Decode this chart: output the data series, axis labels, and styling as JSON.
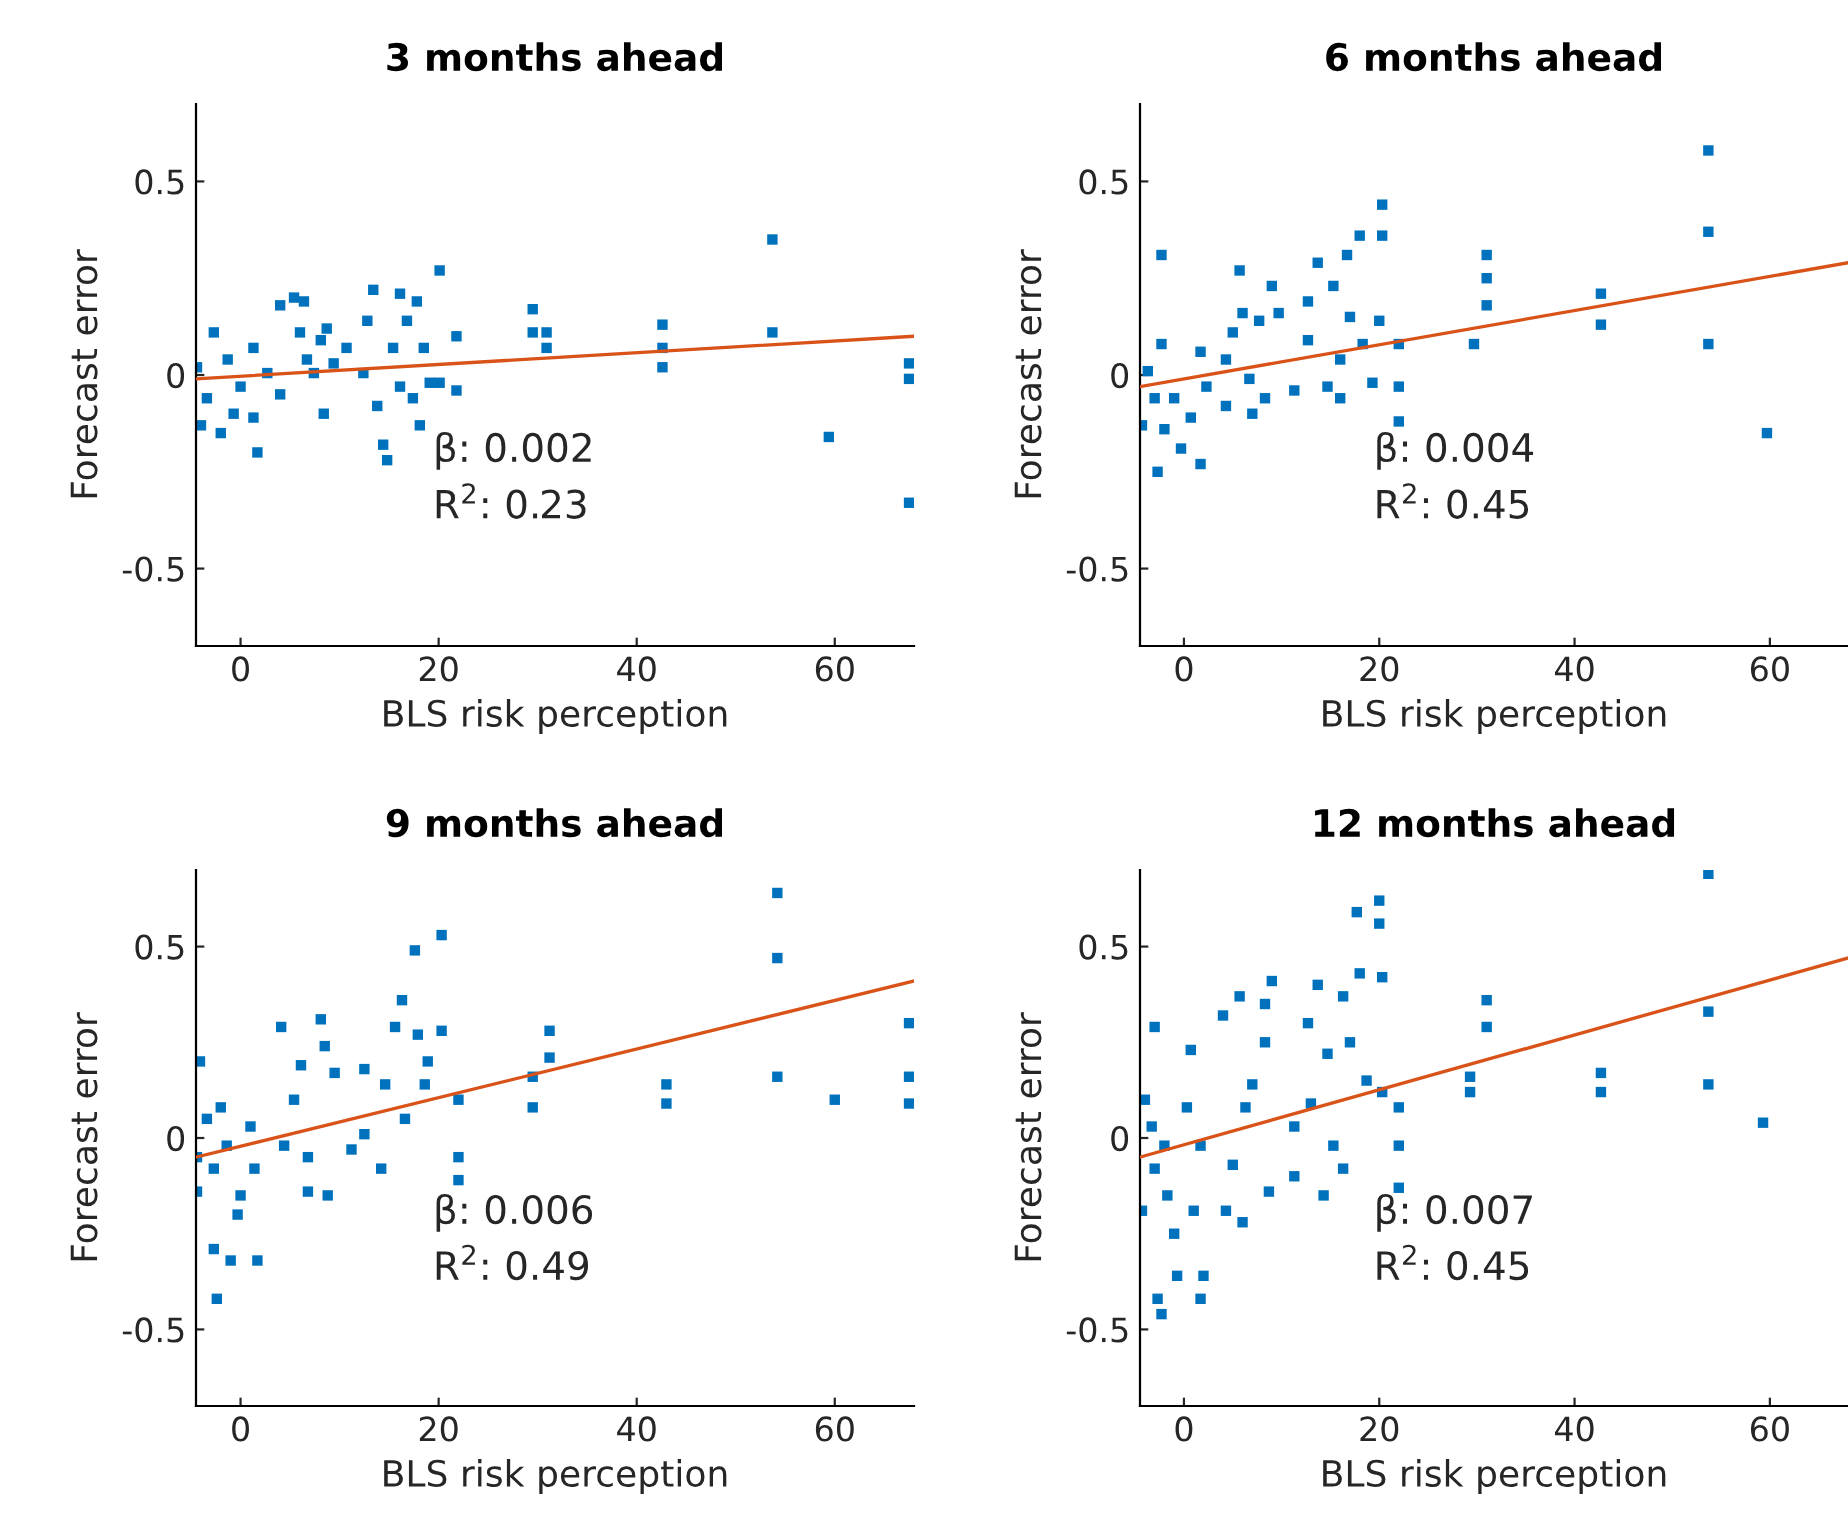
{
  "chart_data": [
    {
      "type": "scatter",
      "title": "3 months ahead",
      "xlabel": "BLS risk perception",
      "ylabel": "Forecast error",
      "xlim": [
        -4.5,
        68
      ],
      "ylim": [
        -0.7,
        0.7
      ],
      "xticks": [
        0,
        20,
        40,
        60
      ],
      "yticks": [
        -0.5,
        0,
        0.5
      ],
      "grid": false,
      "legend": false,
      "annotations": [
        "β: 0.002",
        "R$^{2}$: 0.23"
      ],
      "series": [
        {
          "marker": "square",
          "color": "#0072bd",
          "x": [
            -4.4,
            -4.0,
            -2.7,
            -3.4,
            -1.3,
            -0.7,
            -2.0,
            0,
            1.3,
            1.3,
            1.7,
            2.7,
            4,
            4,
            5.4,
            6.4,
            6,
            6.7,
            7.4,
            8.1,
            8.4,
            8.7,
            9.4,
            10.7,
            12.8,
            13.4,
            12.4,
            13.8,
            14.4,
            14.8,
            15.4,
            16.1,
            16.1,
            16.8,
            17.4,
            18.1,
            17.8,
            18.5,
            19.1,
            20.1,
            20.1,
            21.8,
            21.8,
            29.5,
            29.5,
            30.9,
            30.9,
            42.6,
            42.6,
            42.6,
            53.7,
            53.7,
            59.4,
            67.5,
            67.5,
            67.5
          ],
          "values": [
            0.02,
            -0.13,
            0.11,
            -0.06,
            0.04,
            -0.1,
            -0.15,
            -0.03,
            0.07,
            -0.11,
            -0.2,
            0.005,
            -0.05,
            0.18,
            0.2,
            0.19,
            0.11,
            0.04,
            0.005,
            0.09,
            -0.1,
            0.12,
            0.03,
            0.07,
            0.14,
            0.22,
            0.005,
            -0.08,
            -0.18,
            -0.22,
            0.07,
            0.21,
            -0.03,
            0.14,
            -0.06,
            -0.13,
            0.19,
            0.07,
            -0.02,
            0.27,
            -0.02,
            0.1,
            -0.04,
            0.17,
            0.11,
            0.11,
            0.07,
            0.13,
            0.07,
            0.02,
            0.35,
            0.11,
            -0.16,
            0.03,
            -0.01,
            -0.33
          ]
        },
        {
          "type": "line",
          "color": "#d95319",
          "x": [
            -4.5,
            68
          ],
          "values": [
            -0.01,
            0.1
          ]
        }
      ]
    },
    {
      "type": "scatter",
      "title": "6 months ahead",
      "xlabel": "BLS risk perception",
      "ylabel": "Forecast error",
      "xlim": [
        -4.5,
        68
      ],
      "ylim": [
        -0.7,
        0.7
      ],
      "xticks": [
        0,
        20,
        40,
        60
      ],
      "yticks": [
        -0.5,
        0,
        0.5
      ],
      "grid": false,
      "legend": false,
      "annotations": [
        "β: 0.004",
        "R$^{2}$: 0.45"
      ],
      "series": [
        {
          "marker": "square",
          "color": "#0072bd",
          "x": [
            -2.3,
            -4.3,
            -3.7,
            -3,
            -2.7,
            -2,
            -2.3,
            -1,
            -0.3,
            0.7,
            1.7,
            1.7,
            2.3,
            4.3,
            4.3,
            5,
            5.7,
            6,
            6.7,
            7,
            7.7,
            8.3,
            9,
            9.7,
            11.3,
            12.7,
            12.7,
            13.7,
            14.7,
            15.3,
            16,
            16,
            16.7,
            17,
            18,
            18.3,
            19.3,
            20,
            20.3,
            20.3,
            22,
            22,
            22,
            29.7,
            31,
            31,
            31,
            42.7,
            42.7,
            53.7,
            53.7,
            53.7,
            59.7
          ],
          "values": [
            0.31,
            -0.13,
            0.01,
            -0.06,
            -0.25,
            -0.14,
            0.08,
            -0.06,
            -0.19,
            -0.11,
            -0.23,
            0.06,
            -0.03,
            0.04,
            -0.08,
            0.11,
            0.27,
            0.16,
            -0.01,
            -0.1,
            0.14,
            -0.06,
            0.23,
            0.16,
            -0.04,
            0.19,
            0.09,
            0.29,
            -0.03,
            0.23,
            0.04,
            -0.06,
            0.31,
            0.15,
            0.36,
            0.08,
            -0.02,
            0.14,
            0.44,
            0.36,
            0.08,
            -0.03,
            -0.12,
            0.08,
            0.31,
            0.25,
            0.18,
            0.21,
            0.13,
            0.58,
            0.37,
            0.08,
            -0.15
          ]
        },
        {
          "type": "line",
          "color": "#d95319",
          "x": [
            -4.5,
            68
          ],
          "values": [
            -0.03,
            0.29
          ]
        }
      ]
    },
    {
      "type": "scatter",
      "title": "9 months ahead",
      "xlabel": "BLS risk perception",
      "ylabel": "Forecast error",
      "xlim": [
        -4.5,
        68
      ],
      "ylim": [
        -0.7,
        0.7
      ],
      "xticks": [
        0,
        20,
        40,
        60
      ],
      "yticks": [
        -0.5,
        0,
        0.5
      ],
      "grid": false,
      "legend": false,
      "annotations": [
        "β: 0.006",
        "R$^{2}$: 0.49"
      ],
      "series": [
        {
          "marker": "square",
          "color": "#0072bd",
          "x": [
            -4.1,
            -4.4,
            -4.4,
            -3.4,
            -2.7,
            -2.7,
            -2.4,
            -2,
            -1.4,
            -1,
            -0.3,
            0,
            1,
            1.7,
            1.4,
            4.1,
            4.4,
            5.4,
            6.1,
            6.8,
            6.8,
            8.1,
            8.5,
            8.8,
            9.5,
            11.2,
            12.5,
            12.5,
            14.2,
            14.6,
            15.6,
            16.3,
            16.6,
            17.6,
            17.9,
            18.6,
            18.9,
            20.3,
            20.3,
            22,
            22,
            22,
            29.5,
            29.5,
            31.2,
            31.2,
            43,
            43,
            54.2,
            54.2,
            54.2,
            60,
            67.5,
            67.5,
            67.5
          ],
          "values": [
            0.2,
            -0.05,
            -0.14,
            0.05,
            -0.08,
            -0.29,
            -0.42,
            0.08,
            -0.02,
            -0.32,
            -0.2,
            -0.15,
            0.03,
            -0.32,
            -0.08,
            0.29,
            -0.02,
            0.1,
            0.19,
            -0.05,
            -0.14,
            0.31,
            0.24,
            -0.15,
            0.17,
            -0.03,
            0.18,
            0.01,
            -0.08,
            0.14,
            0.29,
            0.36,
            0.05,
            0.49,
            0.27,
            0.14,
            0.2,
            0.53,
            0.28,
            0.1,
            -0.05,
            -0.11,
            0.16,
            0.08,
            0.28,
            0.21,
            0.14,
            0.09,
            0.64,
            0.47,
            0.16,
            0.1,
            0.3,
            0.16,
            0.09
          ]
        },
        {
          "type": "line",
          "color": "#d95319",
          "x": [
            -4.5,
            68
          ],
          "values": [
            -0.05,
            0.41
          ]
        }
      ]
    },
    {
      "type": "scatter",
      "title": "12 months ahead",
      "xlabel": "BLS risk perception",
      "ylabel": "Forecast error",
      "xlim": [
        -4.5,
        68
      ],
      "ylim": [
        -0.7,
        0.7
      ],
      "xticks": [
        0,
        20,
        40,
        60
      ],
      "yticks": [
        -0.5,
        0,
        0.5
      ],
      "grid": false,
      "legend": false,
      "annotations": [
        "β: 0.007",
        "R$^{2}$: 0.45"
      ],
      "series": [
        {
          "marker": "square",
          "color": "#0072bd",
          "x": [
            -4,
            -4.3,
            -3,
            -3.3,
            -3,
            -2.7,
            -2.3,
            -2,
            -1.7,
            -1,
            -0.7,
            0.3,
            0.7,
            1,
            1.7,
            2,
            1.7,
            4,
            4.3,
            5,
            5.7,
            6,
            6.3,
            7,
            8.3,
            8.3,
            8.7,
            9,
            11.3,
            11.3,
            12.7,
            13,
            13.7,
            14.3,
            14.7,
            15.3,
            16.3,
            16.3,
            17,
            17.7,
            18,
            18.7,
            20,
            20,
            20.3,
            20.3,
            22,
            22,
            22,
            29.3,
            29.3,
            31,
            31,
            42.7,
            42.7,
            53.7,
            53.7,
            53.7,
            59.3
          ],
          "values": [
            0.1,
            -0.19,
            0.29,
            0.03,
            -0.08,
            -0.42,
            -0.46,
            -0.02,
            -0.15,
            -0.25,
            -0.36,
            0.08,
            0.23,
            -0.19,
            -0.42,
            -0.36,
            -0.02,
            0.32,
            -0.19,
            -0.07,
            0.37,
            -0.22,
            0.08,
            0.14,
            0.35,
            0.25,
            -0.14,
            0.41,
            0.03,
            -0.1,
            0.3,
            0.09,
            0.4,
            -0.15,
            0.22,
            -0.02,
            0.37,
            -0.08,
            0.25,
            0.59,
            0.43,
            0.15,
            0.62,
            0.56,
            0.42,
            0.12,
            0.08,
            -0.02,
            -0.13,
            0.16,
            0.12,
            0.36,
            0.29,
            0.17,
            0.12,
            0.69,
            0.33,
            0.14,
            0.04
          ]
        },
        {
          "type": "line",
          "color": "#d95319",
          "x": [
            -4.5,
            68
          ],
          "values": [
            -0.05,
            0.47
          ]
        }
      ]
    }
  ]
}
